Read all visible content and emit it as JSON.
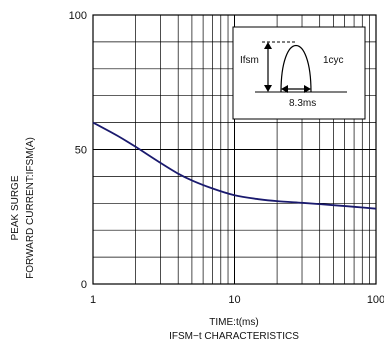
{
  "chart_data": {
    "type": "line",
    "title": "IFSM−t CHARACTERISTICS",
    "xlabel": "TIME:t(ms)",
    "ylabel": [
      "PEAK SURGE",
      "FORWARD CURRENT:IFSM(A)"
    ],
    "x_scale": "log",
    "xlim": [
      1,
      100
    ],
    "ylim": [
      0,
      100
    ],
    "x_ticks": [
      "1",
      "10",
      "100"
    ],
    "y_ticks": [
      "0",
      "50",
      "100"
    ],
    "grid": true,
    "series": [
      {
        "color": "#1a1a6e",
        "x": [
          1,
          1.5,
          2,
          3,
          4,
          5,
          7,
          10,
          15,
          20,
          30,
          40,
          50,
          70,
          100
        ],
        "y": [
          60,
          55,
          51,
          45,
          41,
          38.5,
          35.5,
          33,
          31.5,
          30.8,
          30.2,
          29.7,
          29.3,
          28.7,
          28
        ]
      }
    ],
    "inset": {
      "label_ifsm": "Ifsm",
      "label_cycle": "1cyc",
      "label_time": "8.3ms"
    }
  }
}
